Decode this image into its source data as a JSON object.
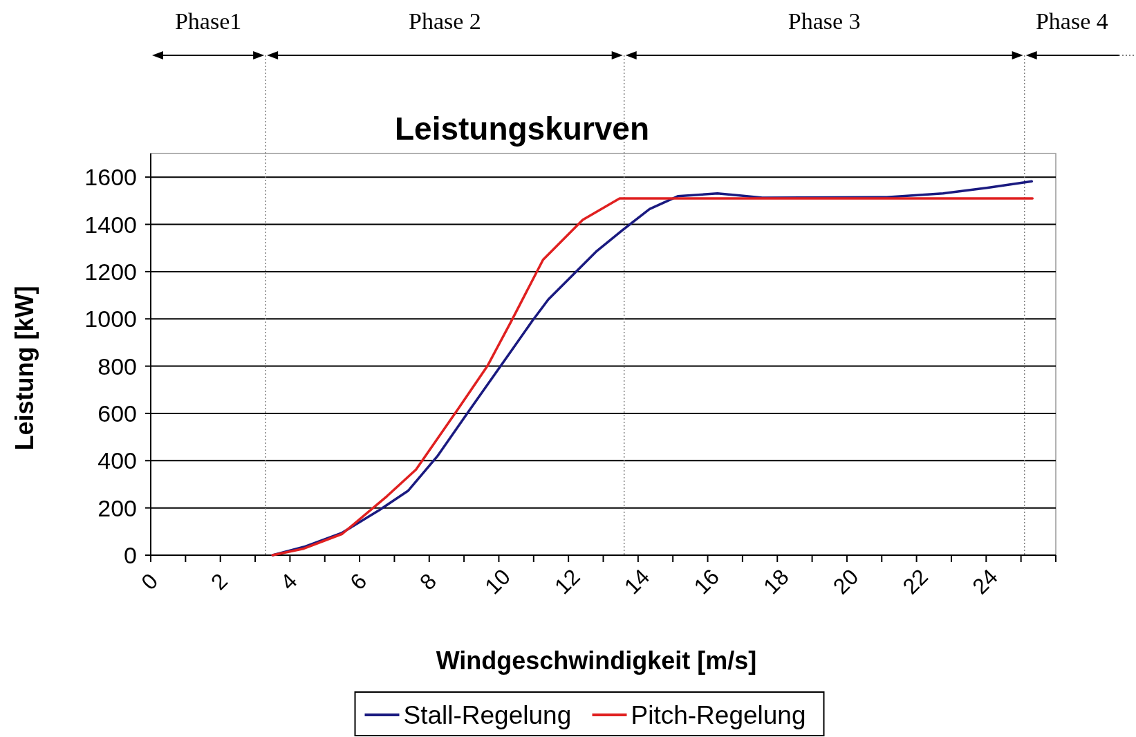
{
  "chart_data": {
    "type": "line",
    "title": "Leistungskurven",
    "xlabel": "Windgeschwindigkeit [m/s]",
    "ylabel": "Leistung [kW]",
    "xlim": [
      0,
      26
    ],
    "ylim": [
      0,
      1700
    ],
    "xticks": [
      0,
      {
        "value": 1,
        "label": null
      },
      2,
      {
        "value": 3,
        "label": null
      },
      4,
      {
        "value": 5,
        "label": null
      },
      6,
      {
        "value": 7,
        "label": null
      },
      8,
      {
        "value": 9,
        "label": null
      },
      10,
      {
        "value": 11,
        "label": null
      },
      12,
      {
        "value": 13,
        "label": null
      },
      14,
      {
        "value": 15,
        "label": null
      },
      16,
      {
        "value": 17,
        "label": null
      },
      18,
      {
        "value": 19,
        "label": null
      },
      20,
      {
        "value": 21,
        "label": null
      },
      22,
      {
        "value": 23,
        "label": null
      },
      24,
      {
        "value": 25,
        "label": null
      },
      {
        "value": 26,
        "label": null
      }
    ],
    "yticks": [
      0,
      200,
      400,
      600,
      800,
      1000,
      1200,
      1400,
      1600
    ],
    "grid": "y",
    "legend": "bottom",
    "marker": "none",
    "line_style": "solid",
    "series": [
      {
        "name": "Stall-Regelung",
        "color": "#1a1a80",
        "x": [
          3.5,
          4.4,
          5.5,
          6.56,
          7.39,
          8.23,
          9.14,
          10.05,
          10.96,
          11.42,
          12.18,
          12.79,
          13.54,
          14.33,
          15.14,
          16.28,
          16.92,
          17.57,
          21.14,
          22.76,
          24.05,
          25.31
        ],
        "values": [
          0,
          35,
          95,
          190,
          272,
          418,
          610,
          800,
          991,
          1082,
          1194,
          1284,
          1374,
          1465,
          1519,
          1531,
          1522,
          1513,
          1515,
          1531,
          1555,
          1582
        ]
      },
      {
        "name": "Pitch-Regelung",
        "color": "#e02020",
        "x": [
          3.5,
          4.4,
          5.5,
          6.79,
          7.62,
          8.84,
          9.67,
          10.36,
          11.27,
          12.41,
          13.47,
          25.33
        ],
        "values": [
          0,
          28,
          90,
          250,
          362,
          621,
          800,
          991,
          1250,
          1419,
          1510,
          1510
        ]
      }
    ],
    "ref_lines": [
      {
        "axis": "x",
        "value": 3.3,
        "line_style": "dotted",
        "color": "#808080"
      },
      {
        "axis": "x",
        "value": 13.6,
        "line_style": "dotted",
        "color": "#808080"
      },
      {
        "axis": "x",
        "value": 25.1,
        "line_style": "dotted",
        "color": "#808080"
      }
    ],
    "annotations": [
      "Phase1",
      "Phase 2",
      "Phase 3",
      "Phase 4"
    ]
  }
}
